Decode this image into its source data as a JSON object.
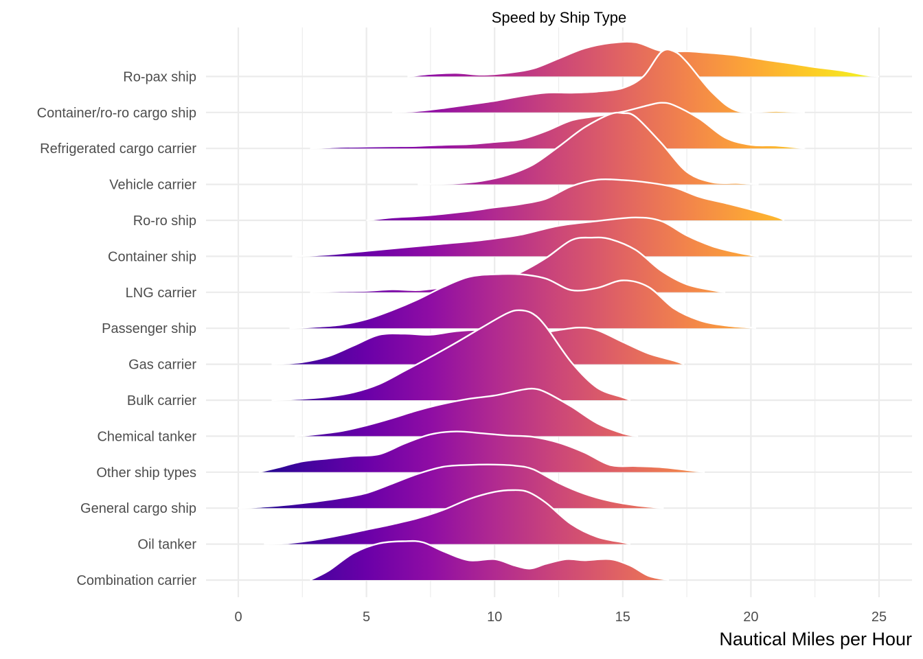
{
  "chart_data": {
    "type": "ridgeline",
    "title": "Speed by Ship Type",
    "xlabel": "Nautical Miles per Hour",
    "ylabel": "",
    "xlim": [
      0,
      25
    ],
    "x_ticks": [
      0,
      5,
      10,
      15,
      20,
      25
    ],
    "x_tick_labels": [
      "0",
      "5",
      "10",
      "15",
      "20",
      "25"
    ],
    "grid": true,
    "fill_colormap": "plasma",
    "outline_color": "#ffffff",
    "categories": [
      "Combination carrier",
      "Oil tanker",
      "General cargo ship",
      "Other ship types",
      "Chemical tanker",
      "Bulk carrier",
      "Gas carrier",
      "Passenger ship",
      "LNG carrier",
      "Container ship",
      "Ro-ro ship",
      "Vehicle carrier",
      "Refrigerated cargo carrier",
      "Container/ro-ro cargo ship",
      "Ro-pax ship"
    ],
    "series": [
      {
        "name": "Combination carrier",
        "density": [
          [
            2.8,
            0
          ],
          [
            3.5,
            0.25
          ],
          [
            4.5,
            0.75
          ],
          [
            5.5,
            1.02
          ],
          [
            6.5,
            1.08
          ],
          [
            7.2,
            1.05
          ],
          [
            8.0,
            0.8
          ],
          [
            9.0,
            0.55
          ],
          [
            10.0,
            0.58
          ],
          [
            10.8,
            0.4
          ],
          [
            11.4,
            0.32
          ],
          [
            12.0,
            0.45
          ],
          [
            12.8,
            0.58
          ],
          [
            13.5,
            0.55
          ],
          [
            14.5,
            0.58
          ],
          [
            15.3,
            0.4
          ],
          [
            16.0,
            0.12
          ],
          [
            16.8,
            0
          ]
        ]
      },
      {
        "name": "Oil tanker",
        "density": [
          [
            1.0,
            0
          ],
          [
            2.0,
            0.03
          ],
          [
            3.0,
            0.12
          ],
          [
            4.0,
            0.25
          ],
          [
            5.0,
            0.4
          ],
          [
            6.0,
            0.55
          ],
          [
            7.0,
            0.72
          ],
          [
            8.0,
            0.95
          ],
          [
            9.0,
            1.25
          ],
          [
            10.0,
            1.45
          ],
          [
            10.7,
            1.5
          ],
          [
            11.3,
            1.45
          ],
          [
            12.0,
            1.15
          ],
          [
            13.0,
            0.55
          ],
          [
            14.0,
            0.2
          ],
          [
            15.0,
            0.05
          ],
          [
            15.3,
            0
          ]
        ]
      },
      {
        "name": "General cargo ship",
        "density": [
          [
            0.0,
            0
          ],
          [
            1.0,
            0.04
          ],
          [
            2.0,
            0.1
          ],
          [
            3.0,
            0.18
          ],
          [
            4.0,
            0.28
          ],
          [
            5.0,
            0.42
          ],
          [
            6.0,
            0.68
          ],
          [
            7.0,
            0.95
          ],
          [
            8.0,
            1.15
          ],
          [
            9.0,
            1.2
          ],
          [
            10.0,
            1.21
          ],
          [
            10.8,
            1.18
          ],
          [
            11.5,
            1.08
          ],
          [
            12.5,
            0.7
          ],
          [
            13.5,
            0.4
          ],
          [
            14.5,
            0.2
          ],
          [
            15.5,
            0.08
          ],
          [
            16.6,
            0
          ]
        ]
      },
      {
        "name": "Other ship types",
        "density": [
          [
            0.8,
            0
          ],
          [
            1.5,
            0.12
          ],
          [
            2.5,
            0.3
          ],
          [
            3.5,
            0.38
          ],
          [
            4.5,
            0.45
          ],
          [
            5.5,
            0.5
          ],
          [
            6.5,
            0.8
          ],
          [
            7.5,
            1.05
          ],
          [
            8.5,
            1.13
          ],
          [
            9.5,
            1.08
          ],
          [
            10.5,
            1.02
          ],
          [
            11.5,
            0.98
          ],
          [
            12.5,
            0.82
          ],
          [
            13.5,
            0.55
          ],
          [
            14.5,
            0.2
          ],
          [
            15.5,
            0.17
          ],
          [
            16.5,
            0.14
          ],
          [
            17.5,
            0.06
          ],
          [
            18.2,
            0
          ]
        ]
      },
      {
        "name": "Chemical tanker",
        "density": [
          [
            2.2,
            0
          ],
          [
            3.0,
            0.05
          ],
          [
            4.0,
            0.14
          ],
          [
            5.0,
            0.3
          ],
          [
            6.0,
            0.5
          ],
          [
            7.0,
            0.72
          ],
          [
            8.0,
            0.9
          ],
          [
            9.0,
            1.04
          ],
          [
            10.0,
            1.13
          ],
          [
            11.0,
            1.28
          ],
          [
            11.5,
            1.32
          ],
          [
            12.0,
            1.22
          ],
          [
            13.0,
            0.82
          ],
          [
            14.0,
            0.36
          ],
          [
            15.0,
            0.08
          ],
          [
            15.6,
            0
          ]
        ]
      },
      {
        "name": "Bulk carrier",
        "density": [
          [
            1.3,
            0
          ],
          [
            2.5,
            0.04
          ],
          [
            3.5,
            0.1
          ],
          [
            4.5,
            0.22
          ],
          [
            5.5,
            0.45
          ],
          [
            6.5,
            0.82
          ],
          [
            7.5,
            1.2
          ],
          [
            8.5,
            1.6
          ],
          [
            9.5,
            2.02
          ],
          [
            10.5,
            2.42
          ],
          [
            11.0,
            2.5
          ],
          [
            11.5,
            2.4
          ],
          [
            12.0,
            2.05
          ],
          [
            13.0,
            1.05
          ],
          [
            14.0,
            0.35
          ],
          [
            15.0,
            0.08
          ],
          [
            15.3,
            0
          ]
        ]
      },
      {
        "name": "Gas carrier",
        "density": [
          [
            1.3,
            0
          ],
          [
            2.5,
            0.06
          ],
          [
            3.5,
            0.22
          ],
          [
            4.5,
            0.52
          ],
          [
            5.5,
            0.82
          ],
          [
            6.5,
            0.85
          ],
          [
            7.5,
            0.82
          ],
          [
            8.5,
            0.92
          ],
          [
            9.5,
            0.96
          ],
          [
            10.5,
            0.95
          ],
          [
            11.5,
            0.85
          ],
          [
            12.5,
            0.95
          ],
          [
            13.3,
            1.02
          ],
          [
            14.0,
            0.95
          ],
          [
            15.0,
            0.62
          ],
          [
            16.0,
            0.3
          ],
          [
            17.0,
            0.1
          ],
          [
            17.4,
            0
          ]
        ]
      },
      {
        "name": "Passenger ship",
        "density": [
          [
            2.0,
            0
          ],
          [
            3.0,
            0.04
          ],
          [
            4.0,
            0.1
          ],
          [
            5.0,
            0.25
          ],
          [
            6.0,
            0.5
          ],
          [
            7.0,
            0.8
          ],
          [
            8.0,
            1.15
          ],
          [
            9.0,
            1.43
          ],
          [
            10.0,
            1.5
          ],
          [
            11.0,
            1.5
          ],
          [
            12.0,
            1.38
          ],
          [
            13.0,
            1.06
          ],
          [
            14.0,
            1.12
          ],
          [
            15.0,
            1.33
          ],
          [
            16.0,
            1.15
          ],
          [
            17.0,
            0.55
          ],
          [
            18.0,
            0.22
          ],
          [
            19.0,
            0.08
          ],
          [
            20.0,
            0.02
          ],
          [
            20.2,
            0
          ]
        ]
      },
      {
        "name": "LNG carrier",
        "density": [
          [
            2.8,
            0
          ],
          [
            4.0,
            0.03
          ],
          [
            5.0,
            0.04
          ],
          [
            6.0,
            0.08
          ],
          [
            7.0,
            0.06
          ],
          [
            8.0,
            0.13
          ],
          [
            9.0,
            0.18
          ],
          [
            10.0,
            0.26
          ],
          [
            11.0,
            0.55
          ],
          [
            12.0,
            0.95
          ],
          [
            13.0,
            1.45
          ],
          [
            13.8,
            1.52
          ],
          [
            14.5,
            1.48
          ],
          [
            15.5,
            1.18
          ],
          [
            16.5,
            0.6
          ],
          [
            17.5,
            0.22
          ],
          [
            18.5,
            0.06
          ],
          [
            19.0,
            0
          ]
        ]
      },
      {
        "name": "Container ship",
        "density": [
          [
            2.1,
            0
          ],
          [
            3.5,
            0.05
          ],
          [
            5.0,
            0.15
          ],
          [
            6.5,
            0.25
          ],
          [
            8.0,
            0.35
          ],
          [
            9.5,
            0.45
          ],
          [
            11.0,
            0.6
          ],
          [
            12.5,
            0.85
          ],
          [
            14.0,
            0.98
          ],
          [
            15.5,
            1.08
          ],
          [
            16.5,
            0.98
          ],
          [
            17.5,
            0.58
          ],
          [
            18.5,
            0.28
          ],
          [
            19.5,
            0.1
          ],
          [
            20.3,
            0
          ]
        ]
      },
      {
        "name": "Ro-ro ship",
        "density": [
          [
            5.0,
            0
          ],
          [
            6.0,
            0.08
          ],
          [
            7.0,
            0.12
          ],
          [
            8.0,
            0.18
          ],
          [
            9.0,
            0.26
          ],
          [
            10.0,
            0.36
          ],
          [
            11.0,
            0.45
          ],
          [
            12.0,
            0.6
          ],
          [
            13.0,
            0.95
          ],
          [
            14.0,
            1.13
          ],
          [
            15.0,
            1.12
          ],
          [
            16.0,
            1.05
          ],
          [
            17.0,
            0.92
          ],
          [
            18.0,
            0.65
          ],
          [
            19.0,
            0.48
          ],
          [
            20.0,
            0.3
          ],
          [
            21.0,
            0.1
          ],
          [
            21.3,
            0
          ]
        ]
      },
      {
        "name": "Vehicle carrier",
        "density": [
          [
            7.0,
            0
          ],
          [
            8.5,
            0.03
          ],
          [
            9.5,
            0.1
          ],
          [
            10.5,
            0.26
          ],
          [
            11.5,
            0.55
          ],
          [
            12.5,
            1.05
          ],
          [
            13.5,
            1.58
          ],
          [
            14.5,
            1.95
          ],
          [
            15.0,
            1.98
          ],
          [
            15.5,
            1.88
          ],
          [
            16.5,
            1.15
          ],
          [
            17.5,
            0.35
          ],
          [
            18.5,
            0.06
          ],
          [
            19.5,
            0.04
          ],
          [
            20.3,
            0
          ]
        ]
      },
      {
        "name": "Refrigerated cargo carrier",
        "density": [
          [
            2.8,
            0
          ],
          [
            4.0,
            0.04
          ],
          [
            5.0,
            0.05
          ],
          [
            6.0,
            0.06
          ],
          [
            7.0,
            0.07
          ],
          [
            8.0,
            0.1
          ],
          [
            9.0,
            0.12
          ],
          [
            10.0,
            0.18
          ],
          [
            11.0,
            0.25
          ],
          [
            12.0,
            0.48
          ],
          [
            13.0,
            0.78
          ],
          [
            14.0,
            0.9
          ],
          [
            15.0,
            1.02
          ],
          [
            16.0,
            1.2
          ],
          [
            16.5,
            1.27
          ],
          [
            17.0,
            1.2
          ],
          [
            18.0,
            0.82
          ],
          [
            19.0,
            0.3
          ],
          [
            20.0,
            0.1
          ],
          [
            21.0,
            0.08
          ],
          [
            22.0,
            0.01
          ],
          [
            22.1,
            0
          ]
        ]
      },
      {
        "name": "Container/ro-ro cargo ship",
        "density": [
          [
            6.0,
            0
          ],
          [
            7.0,
            0.04
          ],
          [
            8.0,
            0.12
          ],
          [
            9.0,
            0.22
          ],
          [
            10.0,
            0.32
          ],
          [
            11.0,
            0.45
          ],
          [
            12.0,
            0.55
          ],
          [
            13.0,
            0.55
          ],
          [
            14.0,
            0.58
          ],
          [
            15.0,
            0.68
          ],
          [
            15.8,
            1.0
          ],
          [
            16.5,
            1.68
          ],
          [
            17.0,
            1.7
          ],
          [
            17.5,
            1.4
          ],
          [
            18.5,
            0.55
          ],
          [
            19.5,
            0.04
          ],
          [
            21.0,
            0.04
          ],
          [
            22.1,
            0
          ]
        ]
      },
      {
        "name": "Ro-pax ship",
        "density": [
          [
            6.6,
            0
          ],
          [
            7.5,
            0.07
          ],
          [
            8.5,
            0.1
          ],
          [
            9.5,
            0.05
          ],
          [
            10.5,
            0.1
          ],
          [
            11.5,
            0.22
          ],
          [
            12.5,
            0.5
          ],
          [
            13.5,
            0.78
          ],
          [
            14.5,
            0.93
          ],
          [
            15.5,
            0.95
          ],
          [
            16.5,
            0.71
          ],
          [
            17.5,
            0.7
          ],
          [
            18.5,
            0.65
          ],
          [
            19.5,
            0.58
          ],
          [
            20.5,
            0.47
          ],
          [
            21.5,
            0.37
          ],
          [
            22.5,
            0.26
          ],
          [
            23.5,
            0.17
          ],
          [
            24.5,
            0.04
          ],
          [
            25.0,
            0
          ]
        ]
      }
    ]
  }
}
